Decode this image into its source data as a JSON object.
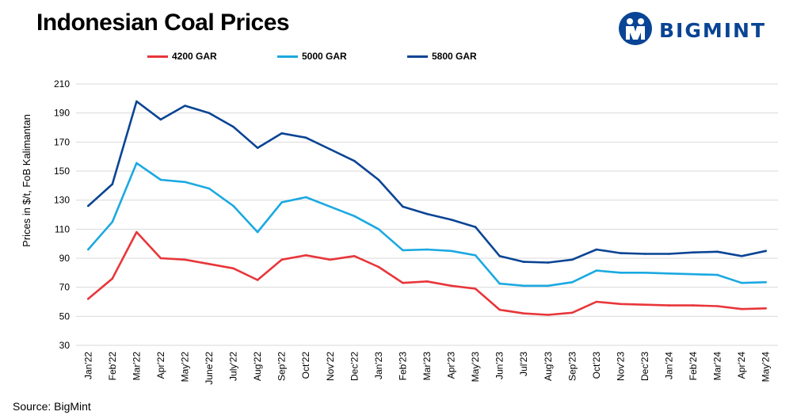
{
  "header": {
    "title": "Indonesian Coal Prices",
    "brand": "BIGMINT"
  },
  "source": "Source: BigMint",
  "colors": {
    "s4200": "#e8363a",
    "s5000": "#1ba9e1",
    "s5800": "#0a4494",
    "logo": "#0a4494"
  },
  "chart_data": {
    "type": "line",
    "title": "Indonesian Coal Prices",
    "xlabel": "",
    "ylabel": "Prices in $/t, FoB Kalimantan",
    "ylim": [
      30,
      210
    ],
    "yticks": [
      30,
      50,
      70,
      90,
      110,
      130,
      150,
      170,
      190,
      210
    ],
    "grid": true,
    "legend_position": "top",
    "categories": [
      "Jan'22",
      "Feb'22",
      "Mar'22",
      "Apr'22",
      "May'22",
      "June'22",
      "July'22",
      "Aug'22",
      "Sep'22",
      "Oct'22",
      "Nov'22",
      "Dec'22",
      "Jan'23",
      "Feb'23",
      "Mar'23",
      "Apr'23",
      "May'23",
      "Jun'23",
      "Jul'23",
      "Aug'23",
      "Sep'23",
      "Oct'23",
      "Nov'23",
      "Dec'23",
      "Jan'24",
      "Feb'24",
      "Mar'24",
      "Apr'24",
      "May'24"
    ],
    "series": [
      {
        "name": "4200 GAR",
        "color": "#e8363a",
        "values": [
          62,
          76,
          108,
          90,
          89,
          86,
          83,
          75,
          89,
          92,
          89,
          91.5,
          84,
          73,
          74,
          71,
          69,
          54.5,
          52,
          51,
          52.5,
          60,
          58.5,
          58,
          57.5,
          57.5,
          57,
          55,
          55.5
        ]
      },
      {
        "name": "5000 GAR",
        "color": "#1ba9e1",
        "values": [
          96,
          115,
          155.5,
          144,
          142.5,
          138,
          126,
          108,
          128.5,
          132,
          125.5,
          119,
          110,
          95.5,
          96,
          95,
          92,
          72.5,
          71,
          71,
          73.5,
          81.5,
          80,
          80,
          79.5,
          79,
          78.5,
          73,
          73.5
        ]
      },
      {
        "name": "5800 GAR",
        "color": "#0a4494",
        "values": [
          126,
          141,
          198,
          185.5,
          195,
          190,
          180.5,
          166,
          176,
          173,
          165,
          157,
          144,
          125.5,
          120.5,
          116.5,
          111.5,
          91.5,
          87.5,
          87,
          89,
          96,
          93.5,
          93,
          93,
          94,
          94.5,
          91.5,
          95
        ]
      }
    ]
  }
}
